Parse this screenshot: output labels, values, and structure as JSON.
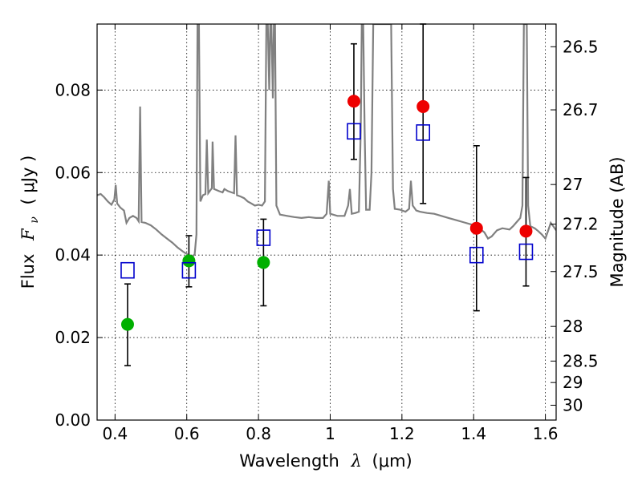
{
  "chart_data": {
    "type": "scatter",
    "xlabel_prefix": "Wavelength",
    "xlabel_symbol": "λ",
    "xlabel_unit": "(μm)",
    "ylabel_prefix": "Flux",
    "ylabel_symbol": "F",
    "ylabel_subscript": "ν",
    "ylabel_unit": "( μJy )",
    "y2label": "Magnitude (AB)",
    "xlim": [
      0.35,
      1.63
    ],
    "ylim": [
      0.0,
      0.096
    ],
    "xticks": [
      0.4,
      0.6,
      0.8,
      1.0,
      1.2,
      1.4,
      1.6
    ],
    "xtick_labels": [
      "0.4",
      "0.6",
      "0.8",
      "1",
      "1.2",
      "1.4",
      "1.6"
    ],
    "yticks": [
      0.0,
      0.02,
      0.04,
      0.06,
      0.08
    ],
    "ytick_labels": [
      "0.00",
      "0.02",
      "0.04",
      "0.06",
      "0.08"
    ],
    "y2ticks": [
      {
        "label": "26.5",
        "flux": 0.0905
      },
      {
        "label": "26.7",
        "flux": 0.0752
      },
      {
        "label": "27",
        "flux": 0.0571
      },
      {
        "label": "27.2",
        "flux": 0.0475
      },
      {
        "label": "27.5",
        "flux": 0.036
      },
      {
        "label": "28",
        "flux": 0.0227
      },
      {
        "label": "28.5",
        "flux": 0.0143
      },
      {
        "label": "29",
        "flux": 0.0091
      },
      {
        "label": "30",
        "flux": 0.0036
      }
    ],
    "grid": true,
    "colors": {
      "template": "#808080",
      "green": "#00b000",
      "red": "#ee0000",
      "model": "#0000cc",
      "errorbar": "#000000"
    },
    "series": [
      {
        "marker": "circle",
        "color": "green",
        "points": [
          {
            "x": 0.435,
            "y": 0.0232,
            "err_low": 0.0132,
            "err_high": 0.033
          },
          {
            "x": 0.606,
            "y": 0.0386,
            "err_low": 0.0323,
            "err_high": 0.0447
          },
          {
            "x": 0.814,
            "y": 0.0382,
            "err_low": 0.0277,
            "err_high": 0.0487
          }
        ]
      },
      {
        "marker": "circle",
        "color": "red",
        "points": [
          {
            "x": 1.066,
            "y": 0.0773,
            "err_low": 0.0632,
            "err_high": 0.0912
          },
          {
            "x": 1.259,
            "y": 0.076,
            "err_low": 0.0525,
            "err_high": 0.096
          },
          {
            "x": 1.408,
            "y": 0.0465,
            "err_low": 0.0265,
            "err_high": 0.0665
          },
          {
            "x": 1.546,
            "y": 0.0458,
            "err_low": 0.0325,
            "err_high": 0.0588
          }
        ]
      },
      {
        "marker": "open-square",
        "color": "model",
        "points": [
          {
            "x": 0.435,
            "y": 0.0363
          },
          {
            "x": 0.606,
            "y": 0.0363
          },
          {
            "x": 0.814,
            "y": 0.0442
          },
          {
            "x": 1.066,
            "y": 0.07
          },
          {
            "x": 1.259,
            "y": 0.0697
          },
          {
            "x": 1.408,
            "y": 0.04
          },
          {
            "x": 1.546,
            "y": 0.0408
          }
        ]
      }
    ],
    "template_spectrum": {
      "color": "template",
      "points": [
        [
          0.35,
          0.0545
        ],
        [
          0.36,
          0.0548
        ],
        [
          0.37,
          0.054
        ],
        [
          0.38,
          0.053
        ],
        [
          0.39,
          0.0522
        ],
        [
          0.398,
          0.0535
        ],
        [
          0.402,
          0.057
        ],
        [
          0.406,
          0.0525
        ],
        [
          0.415,
          0.0515
        ],
        [
          0.425,
          0.0508
        ],
        [
          0.432,
          0.0478
        ],
        [
          0.44,
          0.049
        ],
        [
          0.45,
          0.0495
        ],
        [
          0.46,
          0.049
        ],
        [
          0.466,
          0.0482
        ],
        [
          0.47,
          0.076
        ],
        [
          0.474,
          0.048
        ],
        [
          0.485,
          0.0478
        ],
        [
          0.5,
          0.0472
        ],
        [
          0.515,
          0.0462
        ],
        [
          0.53,
          0.045
        ],
        [
          0.545,
          0.044
        ],
        [
          0.56,
          0.043
        ],
        [
          0.575,
          0.0418
        ],
        [
          0.59,
          0.0408
        ],
        [
          0.605,
          0.04
        ],
        [
          0.615,
          0.0395
        ],
        [
          0.622,
          0.0402
        ],
        [
          0.627,
          0.045
        ],
        [
          0.63,
          0.096
        ],
        [
          0.634,
          0.096
        ],
        [
          0.638,
          0.053
        ],
        [
          0.645,
          0.0545
        ],
        [
          0.652,
          0.0548
        ],
        [
          0.656,
          0.068
        ],
        [
          0.66,
          0.055
        ],
        [
          0.67,
          0.0562
        ],
        [
          0.672,
          0.0675
        ],
        [
          0.676,
          0.056
        ],
        [
          0.69,
          0.0555
        ],
        [
          0.7,
          0.0552
        ],
        [
          0.705,
          0.056
        ],
        [
          0.715,
          0.0555
        ],
        [
          0.725,
          0.0552
        ],
        [
          0.732,
          0.055
        ],
        [
          0.736,
          0.069
        ],
        [
          0.74,
          0.0545
        ],
        [
          0.75,
          0.0542
        ],
        [
          0.76,
          0.0538
        ],
        [
          0.77,
          0.053
        ],
        [
          0.78,
          0.0525
        ],
        [
          0.79,
          0.052
        ],
        [
          0.8,
          0.0522
        ],
        [
          0.81,
          0.052
        ],
        [
          0.818,
          0.053
        ],
        [
          0.822,
          0.096
        ],
        [
          0.826,
          0.096
        ],
        [
          0.83,
          0.08
        ],
        [
          0.833,
          0.096
        ],
        [
          0.836,
          0.096
        ],
        [
          0.84,
          0.078
        ],
        [
          0.843,
          0.096
        ],
        [
          0.846,
          0.096
        ],
        [
          0.85,
          0.052
        ],
        [
          0.86,
          0.0498
        ],
        [
          0.88,
          0.0495
        ],
        [
          0.9,
          0.0492
        ],
        [
          0.92,
          0.049
        ],
        [
          0.94,
          0.0492
        ],
        [
          0.96,
          0.049
        ],
        [
          0.98,
          0.049
        ],
        [
          0.99,
          0.05
        ],
        [
          0.996,
          0.058
        ],
        [
          1.0,
          0.05
        ],
        [
          1.02,
          0.0495
        ],
        [
          1.04,
          0.0495
        ],
        [
          1.05,
          0.052
        ],
        [
          1.055,
          0.056
        ],
        [
          1.06,
          0.05
        ],
        [
          1.07,
          0.0502
        ],
        [
          1.08,
          0.0505
        ],
        [
          1.085,
          0.07
        ],
        [
          1.088,
          0.096
        ],
        [
          1.092,
          0.096
        ],
        [
          1.096,
          0.07
        ],
        [
          1.1,
          0.051
        ],
        [
          1.11,
          0.051
        ],
        [
          1.115,
          0.06
        ],
        [
          1.12,
          0.096
        ],
        [
          1.125,
          0.096
        ],
        [
          1.13,
          0.096
        ],
        [
          1.135,
          0.096
        ],
        [
          1.14,
          0.096
        ],
        [
          1.15,
          0.096
        ],
        [
          1.16,
          0.096
        ],
        [
          1.17,
          0.096
        ],
        [
          1.175,
          0.056
        ],
        [
          1.18,
          0.0512
        ],
        [
          1.195,
          0.051
        ],
        [
          1.21,
          0.0505
        ],
        [
          1.22,
          0.0512
        ],
        [
          1.225,
          0.058
        ],
        [
          1.23,
          0.052
        ],
        [
          1.24,
          0.0508
        ],
        [
          1.25,
          0.0505
        ],
        [
          1.27,
          0.0502
        ],
        [
          1.29,
          0.05
        ],
        [
          1.31,
          0.0495
        ],
        [
          1.33,
          0.049
        ],
        [
          1.35,
          0.0485
        ],
        [
          1.37,
          0.048
        ],
        [
          1.39,
          0.0475
        ],
        [
          1.41,
          0.047
        ],
        [
          1.42,
          0.0462
        ],
        [
          1.43,
          0.0455
        ],
        [
          1.44,
          0.044
        ],
        [
          1.45,
          0.0445
        ],
        [
          1.465,
          0.046
        ],
        [
          1.48,
          0.0465
        ],
        [
          1.5,
          0.0462
        ],
        [
          1.51,
          0.047
        ],
        [
          1.52,
          0.048
        ],
        [
          1.53,
          0.049
        ],
        [
          1.536,
          0.052
        ],
        [
          1.54,
          0.096
        ],
        [
          1.548,
          0.096
        ],
        [
          1.552,
          0.052
        ],
        [
          1.558,
          0.047
        ],
        [
          1.57,
          0.0465
        ],
        [
          1.58,
          0.0458
        ],
        [
          1.59,
          0.045
        ],
        [
          1.6,
          0.044
        ],
        [
          1.608,
          0.046
        ],
        [
          1.615,
          0.0478
        ],
        [
          1.622,
          0.047
        ],
        [
          1.63,
          0.046
        ]
      ]
    }
  }
}
